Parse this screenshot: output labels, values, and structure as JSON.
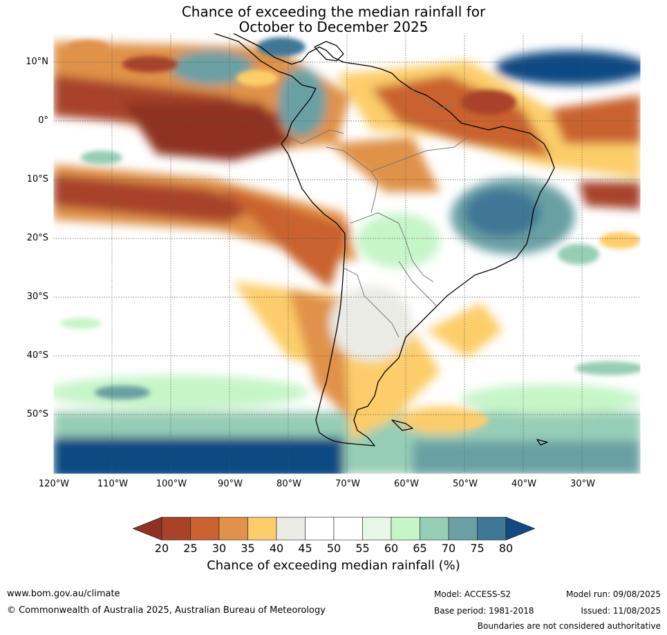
{
  "title": {
    "line1": "Chance of exceeding the median rainfall for",
    "line2": "October to December 2025"
  },
  "lat_labels": [
    "10°N",
    "0°",
    "10°S",
    "20°S",
    "30°S",
    "40°S",
    "50°S"
  ],
  "lon_labels": [
    "120°W",
    "110°W",
    "100°W",
    "90°W",
    "80°W",
    "70°W",
    "60°W",
    "50°W",
    "40°W",
    "30°W"
  ],
  "colorbar": {
    "ticks": [
      "20",
      "25",
      "30",
      "35",
      "40",
      "45",
      "50",
      "55",
      "60",
      "65",
      "70",
      "75",
      "80"
    ],
    "colors": [
      "#a8432a",
      "#c9622f",
      "#e0924a",
      "#fccd6a",
      "#ebebe6",
      "#ffffff",
      "#ffffff",
      "#e8f6e7",
      "#c6f5c8",
      "#96cdb6",
      "#6aa0a4",
      "#3f7796"
    ],
    "under_color": "#8f3221",
    "over_color": "#114a82",
    "label": "Chance of exceeding median rainfall (%)"
  },
  "footer": {
    "website": "www.bom.gov.au/climate",
    "copyright": "© Commonwealth of Australia 2025, Australian Bureau of Meteorology",
    "model": "Model: ACCESS-S2",
    "base_period": "Base period: 1981-2018",
    "model_run": "Model run: 09/08/2025",
    "issued": "Issued: 11/08/2025",
    "disclaimer": "Boundaries are not considered authoritative"
  }
}
